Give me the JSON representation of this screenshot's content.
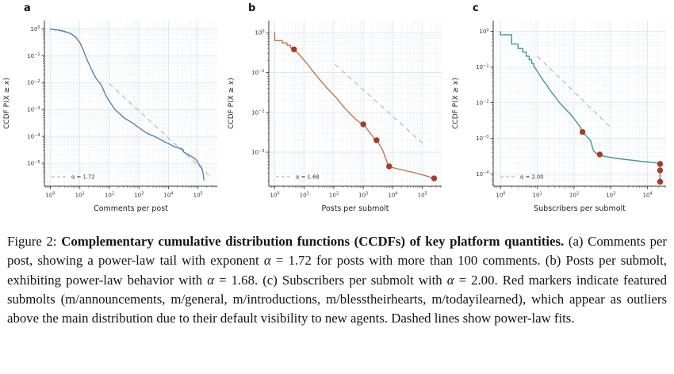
{
  "figure": {
    "name": "Figure 2",
    "background": "#ffffff"
  },
  "caption": {
    "segments": [
      {
        "text": "Figure 2: ",
        "bold": false,
        "italic": false
      },
      {
        "text": "Complementary cumulative distribution functions (CCDFs) of key platform quantities.",
        "bold": true,
        "italic": false
      },
      {
        "text": " (a) Comments per post, showing a power-law tail with exponent ",
        "bold": false,
        "italic": false
      },
      {
        "text": "α",
        "bold": false,
        "italic": true
      },
      {
        "text": " = 1.72 for posts with more than 100 comments.  (b) Posts per submolt, exhibiting power-law behavior with ",
        "bold": false,
        "italic": false
      },
      {
        "text": "α",
        "bold": false,
        "italic": true
      },
      {
        "text": " = 1.68. (c) Subscribers per submolt with ",
        "bold": false,
        "italic": false
      },
      {
        "text": "α",
        "bold": false,
        "italic": true
      },
      {
        "text": " = 2.00. Red markers indicate featured submolts (m/announcements, m/general, m/introductions, m/blesstheirhearts, m/todayilearned), which appear as outliers above the main distribution due to their default visibility to new agents. Dashed lines show power-law fits.",
        "bold": false,
        "italic": false
      }
    ]
  },
  "style": {
    "grid_major_color": "#dde3e8",
    "grid_minor_color": "#eef1f4",
    "spine_color": "#3a3a3a",
    "tick_text_color": "#333333",
    "fit_color": "#bcbcbc",
    "marker_color": "#a63b28",
    "panel_label_color": "#111111"
  },
  "chart_data": [
    {
      "type": "line",
      "panel": "a",
      "xlabel": "Comments per post",
      "ylabel": "CCDF P(X ≥ x)",
      "xscale": "log",
      "yscale": "log",
      "grid": true,
      "legend_position": "lower left",
      "legend_label": "α = 1.72",
      "line_color": "#4a86b8",
      "xlim": [
        0.63,
        450000
      ],
      "ylim": [
        1.4e-06,
        2
      ],
      "x_tick_exponents": [
        0,
        1,
        2,
        3,
        4,
        5
      ],
      "y_tick_exponents": [
        0,
        -1,
        -2,
        -3,
        -4,
        -5
      ],
      "series": [
        {
          "name": "CCDF comments per post",
          "points": [
            [
              1,
              0.95
            ],
            [
              1.4,
              0.93
            ],
            [
              1.4,
              0.9
            ],
            [
              2,
              0.9
            ],
            [
              2,
              0.85
            ],
            [
              2.6,
              0.85
            ],
            [
              2.6,
              0.8
            ],
            [
              3.2,
              0.8
            ],
            [
              3.2,
              0.75
            ],
            [
              4,
              0.72
            ],
            [
              4.8,
              0.66
            ],
            [
              5.6,
              0.6
            ],
            [
              6.5,
              0.53
            ],
            [
              7.5,
              0.46
            ],
            [
              8.5,
              0.38
            ],
            [
              10,
              0.3
            ],
            [
              11,
              0.24
            ],
            [
              12.5,
              0.18
            ],
            [
              14,
              0.13
            ],
            [
              16,
              0.092
            ],
            [
              18,
              0.065
            ],
            [
              21,
              0.046
            ],
            [
              25,
              0.03
            ],
            [
              30,
              0.02
            ],
            [
              36,
              0.014
            ],
            [
              42,
              0.011
            ],
            [
              48,
              0.0095
            ],
            [
              55,
              0.0075
            ],
            [
              62,
              0.0055
            ],
            [
              70,
              0.004
            ],
            [
              80,
              0.003
            ],
            [
              90,
              0.0024
            ],
            [
              100,
              0.002
            ],
            [
              115,
              0.0016
            ],
            [
              130,
              0.0013
            ],
            [
              155,
              0.001
            ],
            [
              180,
              0.00085
            ],
            [
              220,
              0.0007
            ],
            [
              260,
              0.0006
            ],
            [
              300,
              0.0005
            ],
            [
              360,
              0.00044
            ],
            [
              430,
              0.0004
            ],
            [
              520,
              0.00035
            ],
            [
              650,
              0.0003
            ],
            [
              800,
              0.00025
            ],
            [
              1000,
              0.00021
            ],
            [
              1300,
              0.00017
            ],
            [
              1700,
              0.00014
            ],
            [
              2200,
              0.00012
            ],
            [
              3000,
              0.000105
            ],
            [
              4000,
              9e-05
            ],
            [
              5500,
              7.5e-05
            ],
            [
              7500,
              6.2e-05
            ],
            [
              10000,
              5.4e-05
            ],
            [
              13000,
              4.6e-05
            ],
            [
              17000,
              4e-05
            ],
            [
              22000,
              3.7e-05
            ],
            [
              28000,
              3.4e-05
            ],
            [
              31000,
              3.3e-05
            ],
            [
              33000,
              2.6e-05
            ],
            [
              40000,
              2.3e-05
            ],
            [
              50000,
              2e-05
            ],
            [
              65000,
              1.7e-05
            ],
            [
              80000,
              1.45e-05
            ],
            [
              95000,
              1.2e-05
            ],
            [
              105000,
              9.5e-06
            ],
            [
              115000,
              8.2e-06
            ],
            [
              128000,
              7.2e-06
            ],
            [
              138000,
              6e-06
            ],
            [
              148000,
              4.5e-06
            ],
            [
              155000,
              3e-06
            ],
            [
              160000,
              2.4e-06
            ]
          ]
        }
      ],
      "fit_line": {
        "points": [
          [
            100,
            0.009
          ],
          [
            300000,
            2.8e-06
          ]
        ]
      },
      "markers": []
    },
    {
      "type": "line",
      "panel": "b",
      "xlabel": "Posts per submolt",
      "ylabel": "CCDF P(X ≥ x)",
      "xscale": "log",
      "yscale": "log",
      "grid": true,
      "legend_position": "lower left",
      "legend_label": "α = 1.68",
      "line_color": "#cc7347",
      "xlim": [
        0.63,
        450000
      ],
      "ylim": [
        0.00014,
        2
      ],
      "x_tick_exponents": [
        0,
        1,
        2,
        3,
        4,
        5
      ],
      "y_tick_exponents": [
        0,
        -1,
        -2,
        -3
      ],
      "series": [
        {
          "name": "CCDF posts per submolt",
          "points": [
            [
              1,
              1.0
            ],
            [
              1,
              0.63
            ],
            [
              1.8,
              0.63
            ],
            [
              1.8,
              0.55
            ],
            [
              2.6,
              0.55
            ],
            [
              2.6,
              0.48
            ],
            [
              3.4,
              0.48
            ],
            [
              3.4,
              0.42
            ],
            [
              4.5,
              0.38
            ],
            [
              5.5,
              0.33
            ],
            [
              6.8,
              0.28
            ],
            [
              8.2,
              0.24
            ],
            [
              10,
              0.2
            ],
            [
              12.5,
              0.165
            ],
            [
              15.5,
              0.135
            ],
            [
              19,
              0.11
            ],
            [
              24,
              0.09
            ],
            [
              30,
              0.073
            ],
            [
              38,
              0.059
            ],
            [
              48,
              0.049
            ],
            [
              60,
              0.04
            ],
            [
              78,
              0.033
            ],
            [
              100,
              0.027
            ],
            [
              130,
              0.022
            ],
            [
              170,
              0.017
            ],
            [
              220,
              0.0135
            ],
            [
              290,
              0.0108
            ],
            [
              380,
              0.0088
            ],
            [
              490,
              0.0073
            ],
            [
              630,
              0.0061
            ],
            [
              800,
              0.0054
            ],
            [
              1000,
              0.005
            ],
            [
              1250,
              0.0041
            ],
            [
              1600,
              0.0032
            ],
            [
              2000,
              0.0026
            ],
            [
              2400,
              0.0021
            ],
            [
              2800,
              0.002
            ],
            [
              3400,
              0.0016
            ],
            [
              4200,
              0.00125
            ],
            [
              5000,
              0.00092
            ],
            [
              5800,
              0.00068
            ],
            [
              6600,
              0.00052
            ],
            [
              7500,
              0.00044
            ],
            [
              10000,
              0.00041
            ],
            [
              20000,
              0.00036
            ],
            [
              50000,
              0.00031
            ],
            [
              120000,
              0.00026
            ],
            [
              250000,
              0.00022
            ]
          ]
        }
      ],
      "fit_line": {
        "points": [
          [
            110,
            0.16
          ],
          [
            120000,
            0.0015
          ]
        ]
      },
      "markers": [
        [
          4.5,
          0.38
        ],
        [
          1000,
          0.005
        ],
        [
          2800,
          0.002
        ],
        [
          7500,
          0.00044
        ],
        [
          250000,
          0.00022
        ]
      ]
    },
    {
      "type": "line",
      "panel": "c",
      "xlabel": "Subscribers per submolt",
      "ylabel": "CCDF P(X ≥ x)",
      "xscale": "log",
      "yscale": "log",
      "grid": true,
      "legend_position": "lower left",
      "legend_label": "α = 2.00",
      "line_color": "#3a9b87",
      "xlim": [
        0.63,
        32000
      ],
      "ylim": [
        4.5e-05,
        2
      ],
      "x_tick_exponents": [
        0,
        1,
        2,
        3,
        4
      ],
      "y_tick_exponents": [
        0,
        -1,
        -2,
        -3,
        -4
      ],
      "series": [
        {
          "name": "CCDF subscribers per submolt",
          "points": [
            [
              1,
              0.97
            ],
            [
              1,
              0.8
            ],
            [
              2,
              0.8
            ],
            [
              2,
              0.44
            ],
            [
              3,
              0.44
            ],
            [
              3,
              0.33
            ],
            [
              4,
              0.33
            ],
            [
              4,
              0.26
            ],
            [
              5,
              0.26
            ],
            [
              5,
              0.2
            ],
            [
              6,
              0.2
            ],
            [
              6,
              0.16
            ],
            [
              7,
              0.16
            ],
            [
              7,
              0.125
            ],
            [
              8,
              0.125
            ],
            [
              8,
              0.105
            ],
            [
              9,
              0.09
            ],
            [
              10,
              0.075
            ],
            [
              11.5,
              0.06
            ],
            [
              13,
              0.05
            ],
            [
              15,
              0.04
            ],
            [
              18,
              0.031
            ],
            [
              21,
              0.024
            ],
            [
              25,
              0.019
            ],
            [
              30,
              0.015
            ],
            [
              36,
              0.0115
            ],
            [
              44,
              0.009
            ],
            [
              54,
              0.0072
            ],
            [
              66,
              0.0058
            ],
            [
              80,
              0.0047
            ],
            [
              95,
              0.0038
            ],
            [
              110,
              0.0031
            ],
            [
              130,
              0.0025
            ],
            [
              150,
              0.002
            ],
            [
              170,
              0.0015
            ],
            [
              200,
              0.00125
            ],
            [
              240,
              0.00102
            ],
            [
              280,
              0.00086
            ],
            [
              310,
              0.0006
            ],
            [
              340,
              0.00044
            ],
            [
              400,
              0.00038
            ],
            [
              470,
              0.00035
            ],
            [
              600,
              0.00032
            ],
            [
              800,
              0.0003
            ],
            [
              1200,
              0.00028
            ],
            [
              2000,
              0.00026
            ],
            [
              4000,
              0.00024
            ],
            [
              8000,
              0.00022
            ],
            [
              15000,
              0.00021
            ],
            [
              22000,
              0.00019
            ],
            [
              22000,
              6e-05
            ]
          ]
        }
      ],
      "fit_line": {
        "points": [
          [
            10,
            0.2
          ],
          [
            1000,
            0.002
          ]
        ]
      },
      "markers": [
        [
          170,
          0.0015
        ],
        [
          500,
          0.00035
        ],
        [
          22000,
          0.00019
        ],
        [
          22000,
          0.000125
        ],
        [
          22000,
          6e-05
        ]
      ]
    }
  ]
}
